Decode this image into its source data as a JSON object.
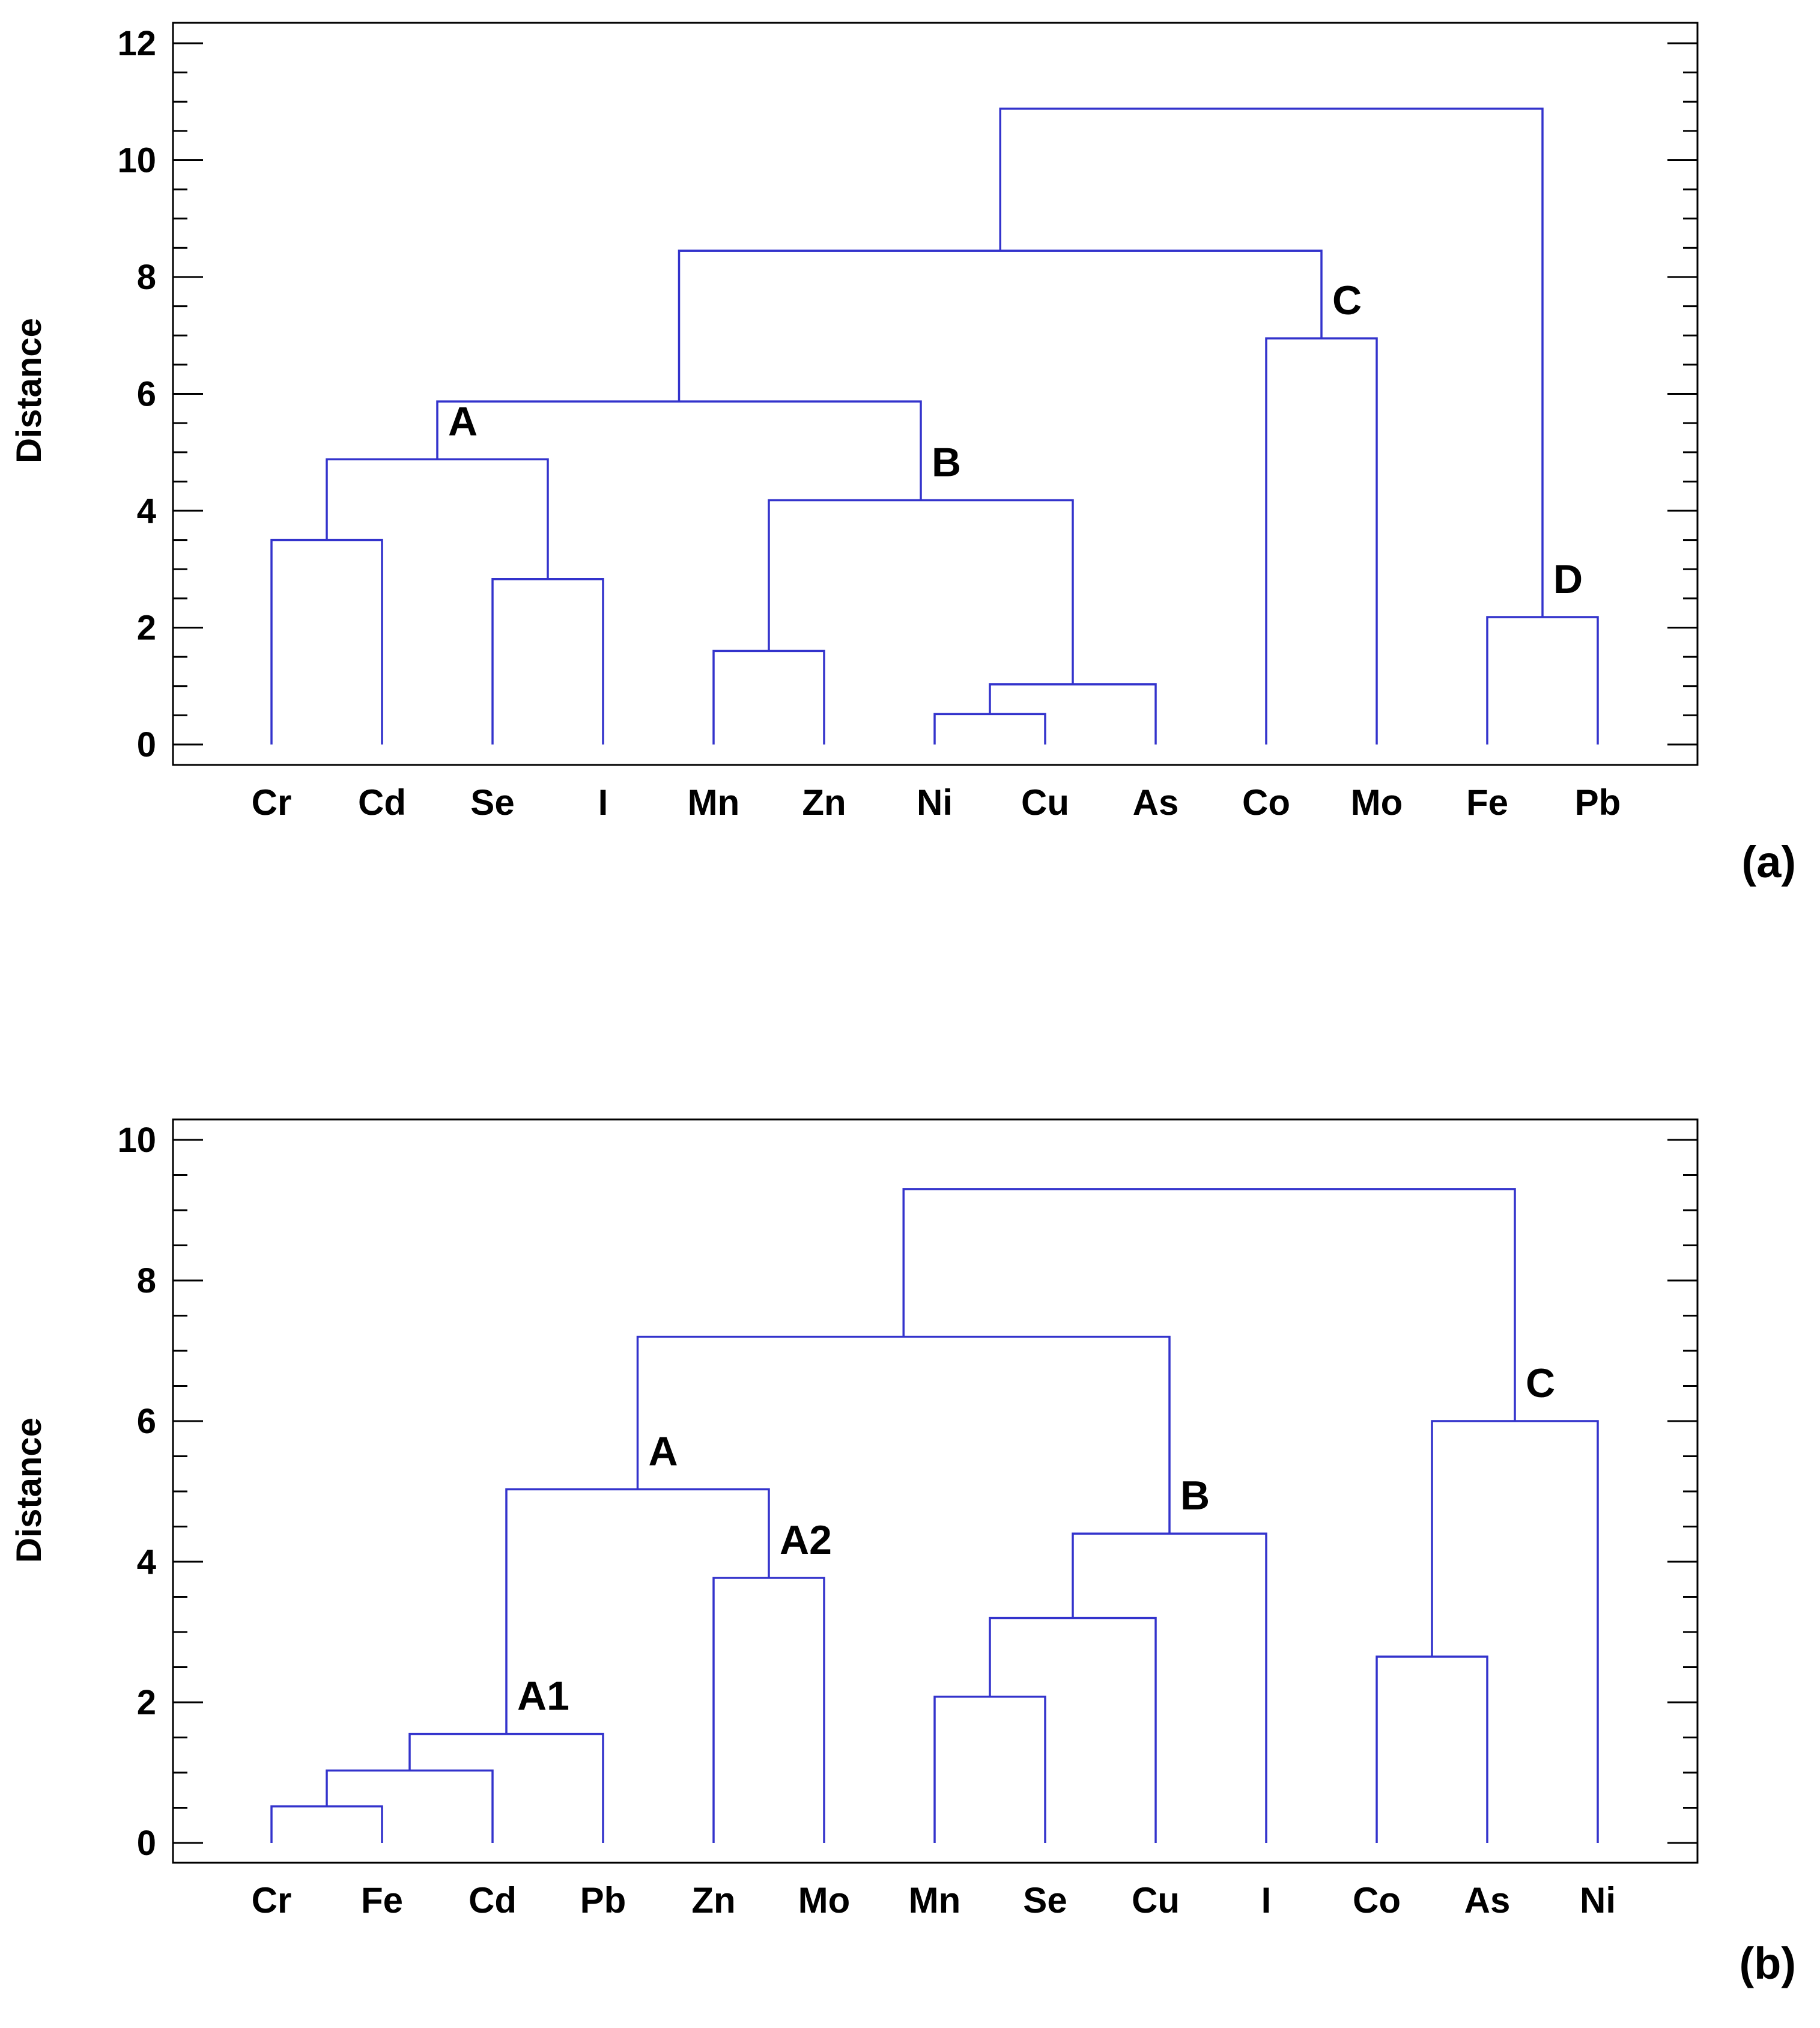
{
  "colors": {
    "link": "#3333cc",
    "axis": "#000000",
    "text": "#000000",
    "background": "#ffffff"
  },
  "chart_data": [
    {
      "type": "dendrogram",
      "panel_label": "(a)",
      "ylabel": "Distance",
      "ylim": [
        0,
        12
      ],
      "yticks": [
        0,
        2,
        4,
        6,
        8,
        10,
        12
      ],
      "leaves": [
        "Cr",
        "Cd",
        "Se",
        "I",
        "Mn",
        "Zn",
        "Ni",
        "Cu",
        "As",
        "Co",
        "Mo",
        "Fe",
        "Pb"
      ],
      "links": [
        {
          "left": 0,
          "right": 1,
          "height": 3.5
        },
        {
          "left": 2,
          "right": 3,
          "height": 2.83
        },
        {
          "left": 4,
          "right": 5,
          "height": 1.6
        },
        {
          "left": 6,
          "right": 7,
          "height": 0.52
        },
        {
          "left": "n3",
          "right": 8,
          "height": 1.03
        },
        {
          "left": "n0",
          "right": "n1",
          "height": 4.88
        },
        {
          "left": "n2",
          "right": "n4",
          "height": 4.18
        },
        {
          "left": "n5",
          "right": "n6",
          "height": 5.87
        },
        {
          "left": 9,
          "right": 10,
          "height": 6.95
        },
        {
          "left": "n7",
          "right": "n8",
          "height": 8.45
        },
        {
          "left": 11,
          "right": 12,
          "height": 2.18
        },
        {
          "left": "n9",
          "right": "n10",
          "height": 10.88
        }
      ],
      "cluster_labels": [
        {
          "text": "A",
          "node": "n5"
        },
        {
          "text": "B",
          "node": "n6"
        },
        {
          "text": "C",
          "node": "n8"
        },
        {
          "text": "D",
          "node": "n10"
        }
      ]
    },
    {
      "type": "dendrogram",
      "panel_label": "(b)",
      "ylabel": "Distance",
      "ylim": [
        0,
        10
      ],
      "yticks": [
        0,
        2,
        4,
        6,
        8,
        10
      ],
      "leaves": [
        "Cr",
        "Fe",
        "Cd",
        "Pb",
        "Zn",
        "Mo",
        "Mn",
        "Se",
        "Cu",
        "I",
        "Co",
        "As",
        "Ni"
      ],
      "links": [
        {
          "left": 0,
          "right": 1,
          "height": 0.52
        },
        {
          "left": "n0",
          "right": 2,
          "height": 1.03
        },
        {
          "left": "n1",
          "right": 3,
          "height": 1.55
        },
        {
          "left": 4,
          "right": 5,
          "height": 3.77
        },
        {
          "left": "n2",
          "right": "n3",
          "height": 5.03
        },
        {
          "left": 6,
          "right": 7,
          "height": 2.08
        },
        {
          "left": "n5",
          "right": 8,
          "height": 3.2
        },
        {
          "left": "n6",
          "right": 9,
          "height": 4.4
        },
        {
          "left": "n4",
          "right": "n7",
          "height": 7.2
        },
        {
          "left": 10,
          "right": 11,
          "height": 2.65
        },
        {
          "left": "n9",
          "right": 12,
          "height": 6.0
        },
        {
          "left": "n8",
          "right": "n10",
          "height": 9.3
        }
      ],
      "cluster_labels": [
        {
          "text": "A",
          "node": "n4"
        },
        {
          "text": "A1",
          "node": "n2"
        },
        {
          "text": "A2",
          "node": "n3"
        },
        {
          "text": "B",
          "node": "n7"
        },
        {
          "text": "C",
          "node": "n10"
        }
      ]
    }
  ]
}
